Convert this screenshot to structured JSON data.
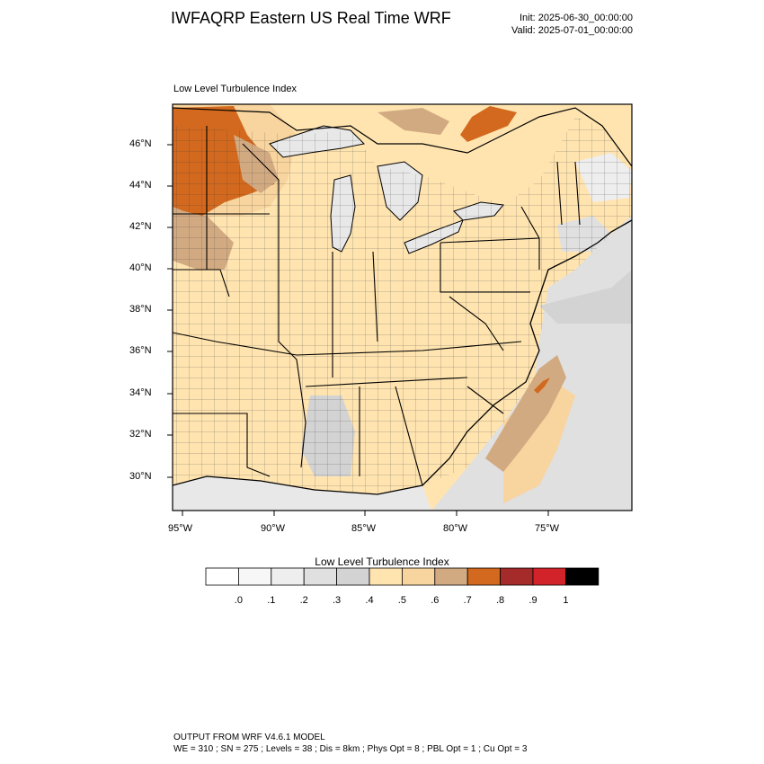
{
  "header": {
    "title": "IWFAQRP Eastern US Real Time WRF",
    "init": "Init: 2025-06-30_00:00:00",
    "valid": "Valid: 2025-07-01_00:00:00"
  },
  "panel": {
    "title": "Low Level Turbulence Index"
  },
  "axes": {
    "lon_ticks": [
      "95°W",
      "90°W",
      "85°W",
      "80°W",
      "75°W"
    ],
    "lat_ticks": [
      "46°N",
      "44°N",
      "42°N",
      "40°N",
      "38°N",
      "36°N",
      "34°N",
      "32°N",
      "30°N"
    ]
  },
  "colorbar": {
    "title": "Low Level Turbulence Index",
    "labels": [
      ".0",
      ".1",
      ".2",
      ".3",
      ".4",
      ".5",
      ".6",
      ".7",
      ".8",
      ".9",
      "1"
    ],
    "colors": [
      "#ffffff",
      "#f7f7f7",
      "#eeeeee",
      "#e0e0e0",
      "#d3d3d3",
      "#ffe4b0",
      "#f8d49e",
      "#d2aa82",
      "#d2691e",
      "#a52a2a",
      "#d2232a",
      "#000000"
    ]
  },
  "footer": {
    "line1": "OUTPUT FROM WRF V4.6.1 MODEL",
    "line2": "WE = 310 ; SN = 275 ; Levels = 38 ; Dis = 8km ; Phys Opt = 8 ; PBL Opt = 1 ; Cu Opt = 3"
  }
}
